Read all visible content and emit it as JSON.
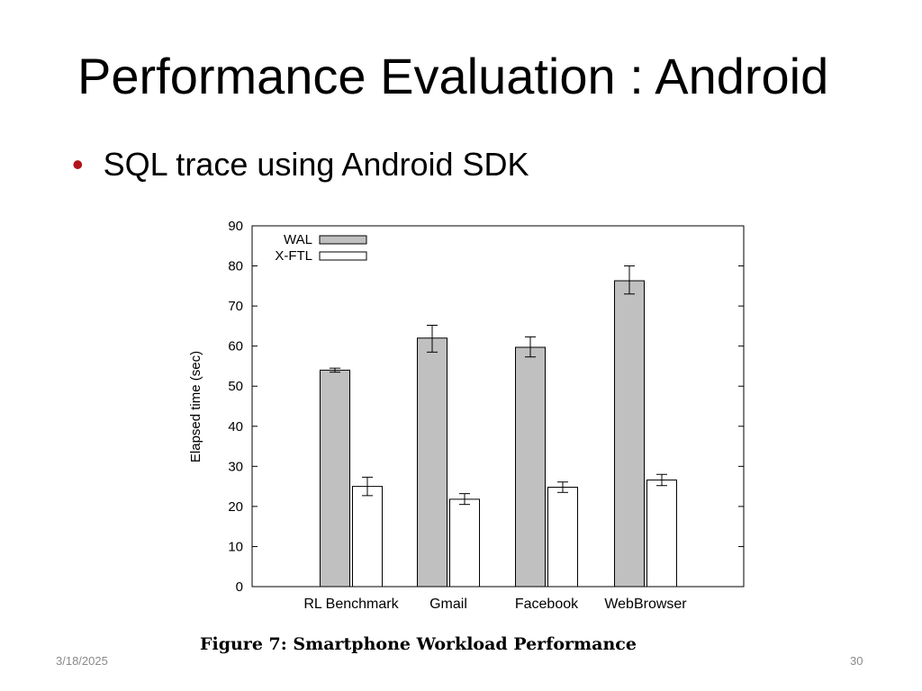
{
  "slide": {
    "title": "Performance Evaluation : Android",
    "bullet": "SQL trace using Android SDK",
    "date": "3/18/2025",
    "page_number": "30"
  },
  "figure": {
    "caption": "Figure 7: Smartphone Workload Performance"
  },
  "colors": {
    "bullet": "#b3121b",
    "wal_fill": "#c0c0c0",
    "xftl_fill": "#ffffff"
  },
  "chart_data": {
    "type": "bar",
    "title": "",
    "xlabel": "",
    "ylabel": "Elapsed time (sec)",
    "ylim": [
      0,
      90
    ],
    "yticks": [
      0,
      10,
      20,
      30,
      40,
      50,
      60,
      70,
      80,
      90
    ],
    "categories": [
      "RL Benchmark",
      "Gmail",
      "Facebook",
      "WebBrowser"
    ],
    "legend_position": "top-left",
    "grid": false,
    "series": [
      {
        "name": "WAL",
        "values": [
          54,
          62,
          59.7,
          76.3
        ],
        "error_low": [
          53.5,
          58.5,
          57.3,
          73
        ],
        "error_high": [
          54.5,
          65.2,
          62.3,
          80
        ]
      },
      {
        "name": "X-FTL",
        "values": [
          25,
          21.8,
          24.8,
          26.6
        ],
        "error_low": [
          22.7,
          20.5,
          23.5,
          25.2
        ],
        "error_high": [
          27.3,
          23.2,
          26.1,
          28
        ]
      }
    ]
  }
}
